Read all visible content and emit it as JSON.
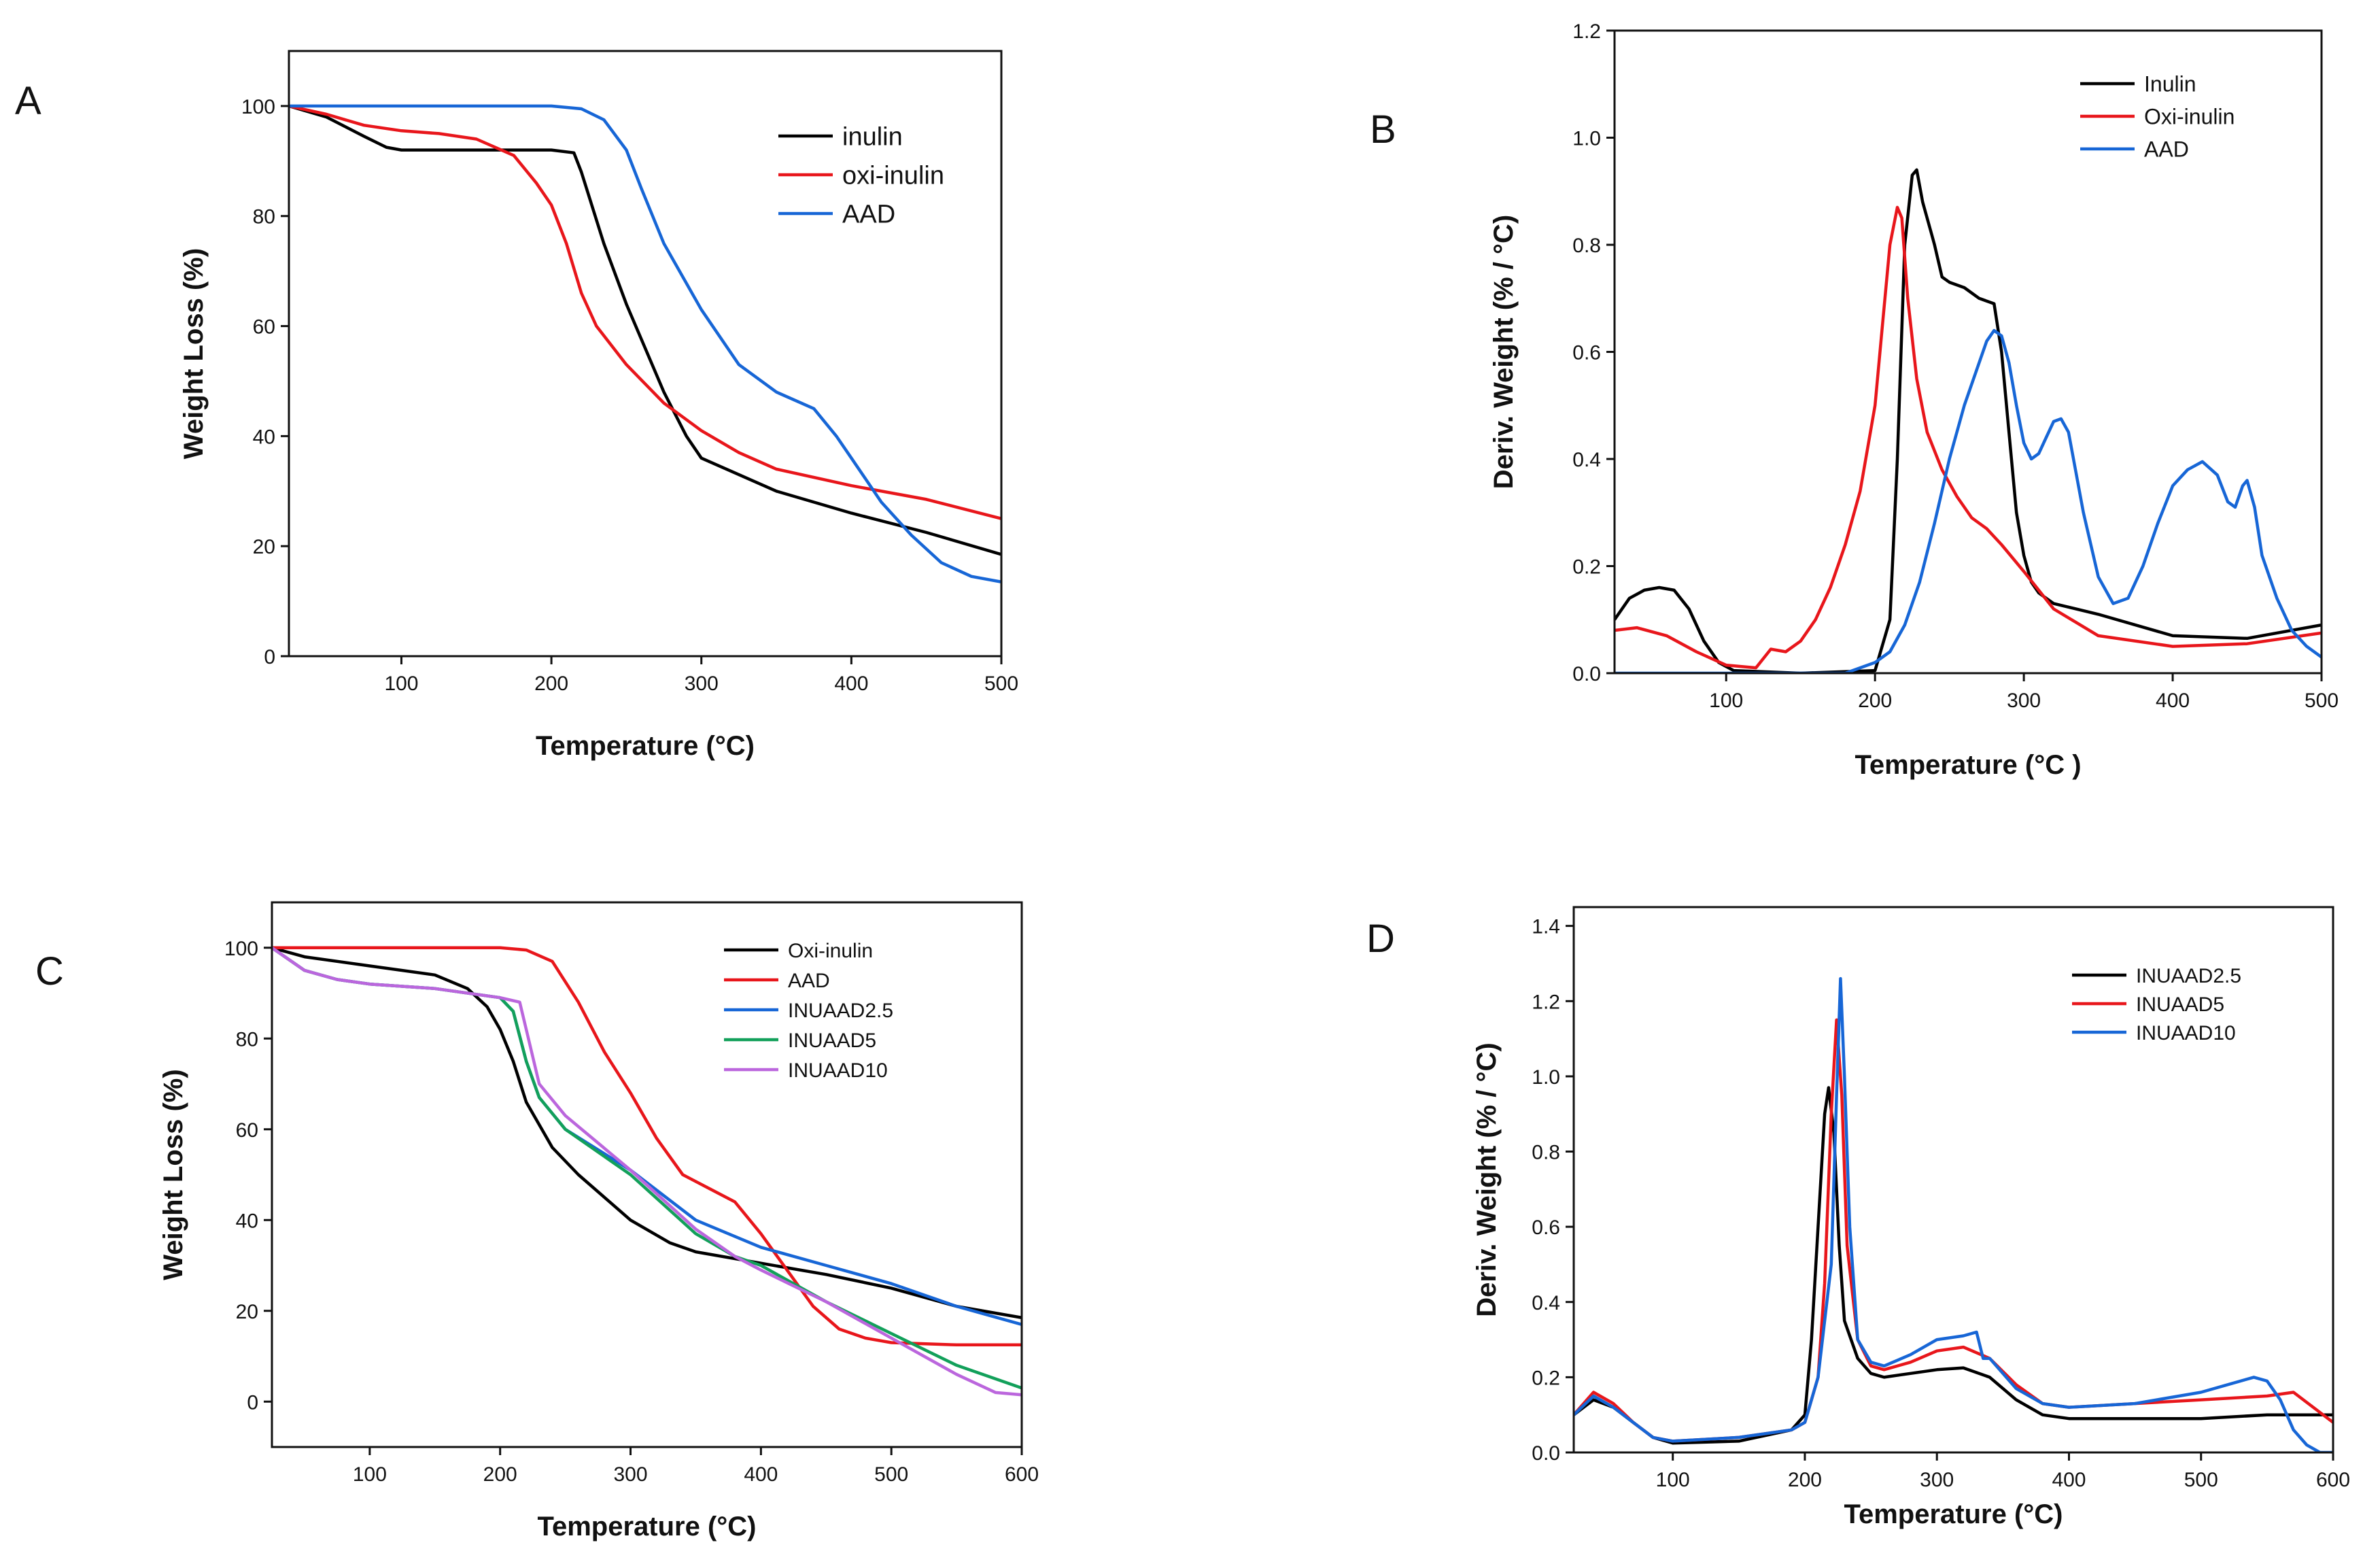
{
  "chart_data": [
    {
      "panel": "A",
      "type": "line",
      "xlabel": "Temperature (°C)",
      "ylabel": "Weight Loss (%)",
      "xlim": [
        25,
        500
      ],
      "ylim": [
        0,
        110
      ],
      "xticks": [
        100,
        200,
        300,
        400,
        500
      ],
      "yticks": [
        0,
        20,
        40,
        60,
        80,
        100
      ],
      "legend_position": "top-right",
      "series": [
        {
          "name": "inulin",
          "color": "#000000",
          "x": [
            25,
            50,
            75,
            90,
            100,
            150,
            200,
            215,
            220,
            235,
            250,
            275,
            290,
            300,
            350,
            400,
            450,
            500
          ],
          "y": [
            100,
            98,
            94.5,
            92.5,
            92,
            92,
            92,
            91.5,
            88,
            75,
            64,
            48,
            40,
            36,
            30,
            26,
            22.5,
            18.5
          ]
        },
        {
          "name": "oxi-inulin",
          "color": "#e8161b",
          "x": [
            25,
            50,
            75,
            100,
            125,
            150,
            175,
            190,
            200,
            210,
            220,
            230,
            250,
            275,
            300,
            325,
            350,
            400,
            450,
            500
          ],
          "y": [
            100,
            98.5,
            96.5,
            95.5,
            95,
            94,
            91,
            86,
            82,
            75,
            66,
            60,
            53,
            46,
            41,
            37,
            34,
            31,
            28.5,
            25
          ]
        },
        {
          "name": "AAD",
          "color": "#1766d6",
          "x": [
            25,
            100,
            200,
            220,
            235,
            250,
            260,
            275,
            300,
            325,
            350,
            375,
            390,
            400,
            420,
            440,
            460,
            480,
            500
          ],
          "y": [
            100,
            100,
            100,
            99.5,
            97.5,
            92,
            85,
            75,
            63,
            53,
            48,
            45,
            40,
            36,
            28,
            22,
            17,
            14.5,
            13.5
          ]
        }
      ]
    },
    {
      "panel": "B",
      "type": "line",
      "xlabel": "Temperature (°C )",
      "ylabel": "Deriv. Weight (% / °C)",
      "xlim": [
        25,
        500
      ],
      "ylim": [
        0,
        1.2
      ],
      "xticks": [
        100,
        200,
        300,
        400,
        500
      ],
      "yticks": [
        0.0,
        0.2,
        0.4,
        0.6,
        0.8,
        1.0,
        1.2
      ],
      "legend_position": "top-right",
      "series": [
        {
          "name": "Inulin",
          "color": "#000000",
          "x": [
            25,
            35,
            45,
            55,
            65,
            75,
            85,
            95,
            105,
            150,
            200,
            210,
            215,
            220,
            225,
            228,
            232,
            238,
            240,
            245,
            250,
            260,
            270,
            280,
            285,
            290,
            295,
            300,
            305,
            310,
            320,
            350,
            400,
            450,
            500
          ],
          "y": [
            0.1,
            0.14,
            0.155,
            0.16,
            0.155,
            0.12,
            0.06,
            0.02,
            0.005,
            0.0,
            0.005,
            0.1,
            0.4,
            0.8,
            0.93,
            0.94,
            0.88,
            0.82,
            0.8,
            0.74,
            0.73,
            0.72,
            0.7,
            0.69,
            0.6,
            0.45,
            0.3,
            0.22,
            0.17,
            0.15,
            0.13,
            0.11,
            0.07,
            0.065,
            0.09
          ]
        },
        {
          "name": "Oxi-inulin",
          "color": "#e8161b",
          "x": [
            25,
            40,
            60,
            80,
            100,
            120,
            130,
            140,
            150,
            160,
            170,
            180,
            190,
            200,
            205,
            210,
            215,
            218,
            222,
            228,
            235,
            245,
            255,
            265,
            275,
            285,
            300,
            320,
            350,
            400,
            450,
            500
          ],
          "y": [
            0.08,
            0.085,
            0.07,
            0.04,
            0.015,
            0.01,
            0.045,
            0.04,
            0.06,
            0.1,
            0.16,
            0.24,
            0.34,
            0.5,
            0.65,
            0.8,
            0.87,
            0.85,
            0.7,
            0.55,
            0.45,
            0.38,
            0.33,
            0.29,
            0.27,
            0.24,
            0.19,
            0.12,
            0.07,
            0.05,
            0.055,
            0.075
          ]
        },
        {
          "name": "AAD",
          "color": "#1766d6",
          "x": [
            25,
            100,
            150,
            180,
            190,
            200,
            210,
            220,
            230,
            240,
            250,
            260,
            270,
            275,
            280,
            285,
            290,
            295,
            300,
            305,
            310,
            315,
            320,
            325,
            330,
            340,
            350,
            360,
            370,
            380,
            390,
            400,
            410,
            420,
            430,
            437,
            442,
            447,
            450,
            455,
            460,
            470,
            480,
            490,
            500
          ],
          "y": [
            0.0,
            0.0,
            0.0,
            0.0,
            0.01,
            0.02,
            0.04,
            0.09,
            0.17,
            0.28,
            0.4,
            0.5,
            0.58,
            0.62,
            0.64,
            0.63,
            0.58,
            0.5,
            0.43,
            0.4,
            0.41,
            0.44,
            0.47,
            0.475,
            0.45,
            0.3,
            0.18,
            0.13,
            0.14,
            0.2,
            0.28,
            0.35,
            0.38,
            0.395,
            0.37,
            0.32,
            0.31,
            0.35,
            0.36,
            0.31,
            0.22,
            0.14,
            0.08,
            0.05,
            0.03
          ]
        }
      ]
    },
    {
      "panel": "C",
      "type": "line",
      "xlabel": "Temperature (°C)",
      "ylabel": "Weight Loss (%)",
      "xlim": [
        25,
        600
      ],
      "ylim": [
        -10,
        110
      ],
      "xticks": [
        100,
        200,
        300,
        400,
        500,
        600
      ],
      "yticks": [
        0,
        20,
        40,
        60,
        80,
        100
      ],
      "legend_position": "top-right",
      "series": [
        {
          "name": "Oxi-inulin",
          "color": "#000000",
          "x": [
            25,
            50,
            100,
            150,
            175,
            190,
            200,
            210,
            220,
            240,
            260,
            280,
            300,
            330,
            350,
            400,
            450,
            500,
            550,
            600
          ],
          "y": [
            100,
            98,
            96,
            94,
            91,
            87,
            82,
            75,
            66,
            56,
            50,
            45,
            40,
            35,
            33,
            30.5,
            28,
            25,
            21,
            18.5
          ]
        },
        {
          "name": "AAD",
          "color": "#e8161b",
          "x": [
            25,
            100,
            200,
            220,
            240,
            260,
            280,
            300,
            320,
            340,
            360,
            380,
            400,
            420,
            440,
            460,
            480,
            500,
            550,
            600
          ],
          "y": [
            100,
            100,
            100,
            99.5,
            97,
            88,
            77,
            68,
            58,
            50,
            47,
            44,
            37,
            29,
            21,
            16,
            14,
            13,
            12.5,
            12.5
          ]
        },
        {
          "name": "INUAAD2.5",
          "color": "#1766d6",
          "x": [
            25,
            50,
            75,
            100,
            150,
            200,
            210,
            220,
            230,
            250,
            300,
            350,
            400,
            450,
            500,
            550,
            600
          ],
          "y": [
            100,
            95,
            93,
            92,
            91,
            89,
            86,
            75,
            67,
            60,
            51,
            40,
            34,
            30,
            26,
            21,
            17
          ]
        },
        {
          "name": "INUAAD5",
          "color": "#12a05a",
          "x": [
            25,
            50,
            75,
            100,
            150,
            200,
            210,
            220,
            230,
            250,
            300,
            350,
            380,
            400,
            450,
            500,
            550,
            600
          ],
          "y": [
            100,
            95,
            93,
            92,
            91,
            89,
            86,
            75,
            67,
            60,
            50,
            37,
            32,
            30,
            22,
            15,
            8,
            3
          ]
        },
        {
          "name": "INUAAD10",
          "color": "#bb66dd",
          "x": [
            25,
            50,
            75,
            100,
            150,
            200,
            215,
            220,
            230,
            250,
            300,
            350,
            380,
            400,
            450,
            500,
            550,
            580,
            600
          ],
          "y": [
            100,
            95,
            93,
            92,
            91,
            89,
            88,
            82,
            70,
            63,
            51,
            38,
            32,
            29,
            22,
            14,
            6,
            2,
            1.5
          ]
        }
      ]
    },
    {
      "panel": "D",
      "type": "line",
      "xlabel": "Temperature (°C)",
      "ylabel": "Deriv. Weight (% / °C)",
      "xlim": [
        25,
        600
      ],
      "ylim": [
        0,
        1.45
      ],
      "xticks": [
        100,
        200,
        300,
        400,
        500,
        600
      ],
      "yticks": [
        0.0,
        0.2,
        0.4,
        0.6,
        0.8,
        1.0,
        1.2,
        1.4
      ],
      "legend_position": "top-right",
      "series": [
        {
          "name": "INUAAD2.5",
          "color": "#000000",
          "x": [
            25,
            40,
            55,
            70,
            85,
            100,
            150,
            190,
            200,
            205,
            210,
            215,
            218,
            222,
            226,
            230,
            240,
            250,
            260,
            280,
            300,
            320,
            340,
            360,
            380,
            400,
            450,
            500,
            550,
            600
          ],
          "y": [
            0.1,
            0.14,
            0.12,
            0.08,
            0.04,
            0.025,
            0.03,
            0.06,
            0.1,
            0.3,
            0.6,
            0.9,
            0.97,
            0.85,
            0.55,
            0.35,
            0.25,
            0.21,
            0.2,
            0.21,
            0.22,
            0.225,
            0.2,
            0.14,
            0.1,
            0.09,
            0.09,
            0.09,
            0.1,
            0.1
          ]
        },
        {
          "name": "INUAAD5",
          "color": "#e8161b",
          "x": [
            25,
            40,
            55,
            70,
            85,
            100,
            150,
            190,
            200,
            210,
            215,
            220,
            224,
            228,
            232,
            240,
            250,
            260,
            280,
            300,
            320,
            340,
            360,
            380,
            400,
            450,
            500,
            550,
            570,
            600
          ],
          "y": [
            0.1,
            0.16,
            0.13,
            0.08,
            0.04,
            0.03,
            0.04,
            0.06,
            0.08,
            0.2,
            0.45,
            0.9,
            1.15,
            0.95,
            0.55,
            0.3,
            0.23,
            0.22,
            0.24,
            0.27,
            0.28,
            0.25,
            0.18,
            0.13,
            0.12,
            0.13,
            0.14,
            0.15,
            0.16,
            0.08
          ]
        },
        {
          "name": "INUAAD10",
          "color": "#1766d6",
          "x": [
            25,
            40,
            55,
            70,
            85,
            100,
            150,
            190,
            200,
            210,
            220,
            224,
            227,
            230,
            234,
            240,
            250,
            260,
            280,
            300,
            320,
            330,
            335,
            340,
            360,
            380,
            400,
            450,
            500,
            540,
            550,
            560,
            570,
            580,
            590,
            600
          ],
          "y": [
            0.1,
            0.15,
            0.12,
            0.08,
            0.04,
            0.03,
            0.04,
            0.06,
            0.08,
            0.2,
            0.5,
            0.95,
            1.26,
            1.0,
            0.6,
            0.3,
            0.24,
            0.23,
            0.26,
            0.3,
            0.31,
            0.32,
            0.25,
            0.25,
            0.17,
            0.13,
            0.12,
            0.13,
            0.16,
            0.2,
            0.19,
            0.14,
            0.06,
            0.02,
            0.0,
            0.0
          ]
        }
      ]
    }
  ]
}
